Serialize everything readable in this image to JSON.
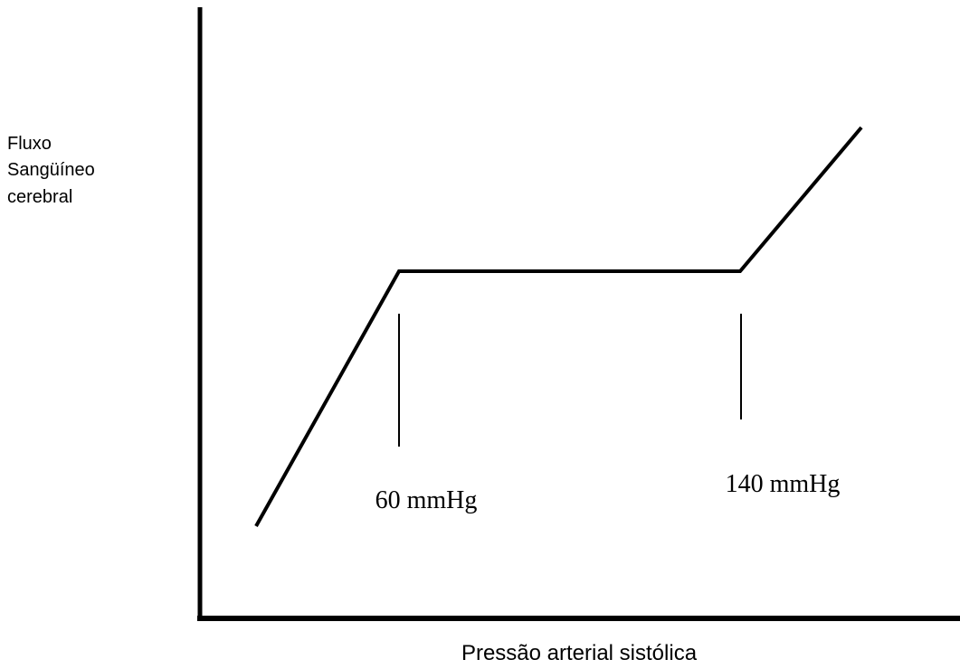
{
  "y_axis_label": [
    "Fluxo",
    "Sangüíneo",
    "cerebral"
  ],
  "x_axis_label": "Pressão arterial sistólica",
  "markers": [
    {
      "label": "60 mmHg"
    },
    {
      "label": "140 mmHg"
    }
  ]
}
